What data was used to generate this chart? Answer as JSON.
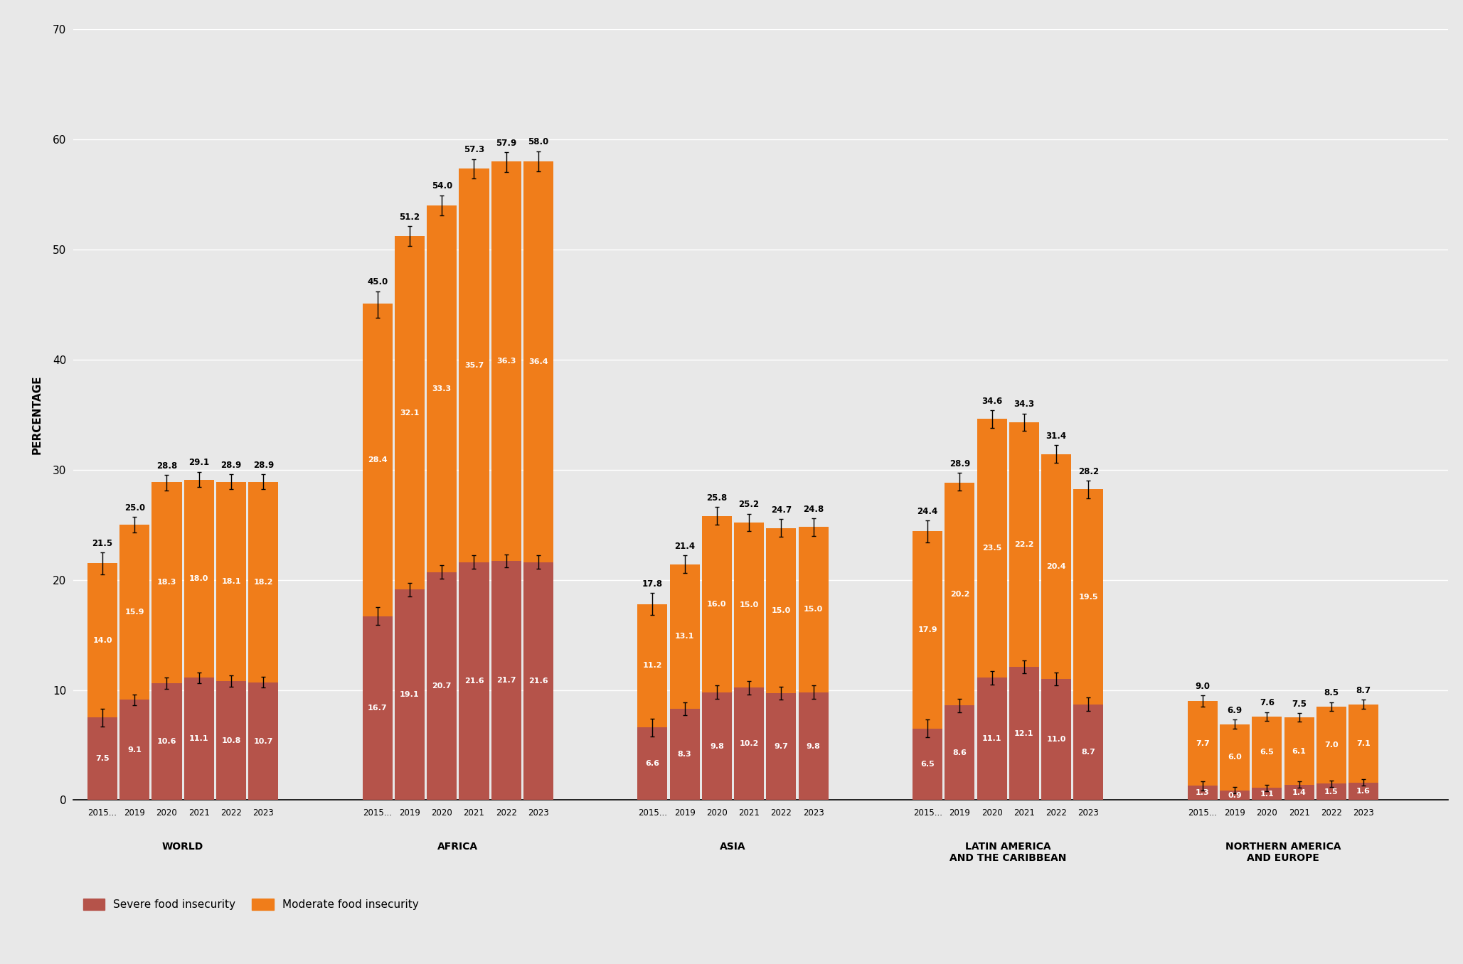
{
  "regions": [
    "WORLD",
    "AFRICA",
    "ASIA",
    "LATIN AMERICA\nAND THE CARIBBEAN",
    "NORTHERN AMERICA\nAND EUROPE"
  ],
  "years": [
    "2015...",
    "2019",
    "2020",
    "2021",
    "2022",
    "2023"
  ],
  "severe": {
    "WORLD": [
      7.5,
      9.1,
      10.6,
      11.1,
      10.8,
      10.7
    ],
    "AFRICA": [
      16.7,
      19.1,
      20.7,
      21.6,
      21.7,
      21.6
    ],
    "ASIA": [
      6.6,
      8.3,
      9.8,
      10.2,
      9.7,
      9.8
    ],
    "LATIN AMERICA\nAND THE CARIBBEAN": [
      6.5,
      8.6,
      11.1,
      12.1,
      11.0,
      8.7
    ],
    "NORTHERN AMERICA\nAND EUROPE": [
      1.3,
      0.9,
      1.1,
      1.4,
      1.5,
      1.6
    ]
  },
  "moderate": {
    "WORLD": [
      14.0,
      15.9,
      18.3,
      18.0,
      18.1,
      18.2
    ],
    "AFRICA": [
      28.4,
      32.1,
      33.3,
      35.7,
      36.3,
      36.4
    ],
    "ASIA": [
      11.2,
      13.1,
      16.0,
      15.0,
      15.0,
      15.0
    ],
    "LATIN AMERICA\nAND THE CARIBBEAN": [
      17.9,
      20.2,
      23.5,
      22.2,
      20.4,
      19.5
    ],
    "NORTHERN AMERICA\nAND EUROPE": [
      7.7,
      6.0,
      6.5,
      6.1,
      7.0,
      7.1
    ]
  },
  "total_labels": {
    "WORLD": [
      21.5,
      25.0,
      28.8,
      29.1,
      28.9,
      28.9
    ],
    "AFRICA": [
      45.0,
      51.2,
      54.0,
      57.3,
      57.9,
      58.0
    ],
    "ASIA": [
      17.8,
      21.4,
      25.8,
      25.2,
      24.7,
      24.8
    ],
    "LATIN AMERICA\nAND THE CARIBBEAN": [
      24.4,
      28.9,
      34.6,
      34.3,
      31.4,
      28.2
    ],
    "NORTHERN AMERICA\nAND EUROPE": [
      9.0,
      6.9,
      7.6,
      7.5,
      8.5,
      8.7
    ]
  },
  "severe_errors": {
    "WORLD": [
      0.8,
      0.5,
      0.5,
      0.5,
      0.5,
      0.5
    ],
    "AFRICA": [
      0.8,
      0.6,
      0.6,
      0.6,
      0.6,
      0.6
    ],
    "ASIA": [
      0.8,
      0.6,
      0.6,
      0.6,
      0.6,
      0.6
    ],
    "LATIN AMERICA\nAND THE CARIBBEAN": [
      0.8,
      0.6,
      0.6,
      0.6,
      0.6,
      0.6
    ],
    "NORTHERN AMERICA\nAND EUROPE": [
      0.4,
      0.3,
      0.3,
      0.3,
      0.3,
      0.3
    ]
  },
  "total_errors": {
    "WORLD": [
      1.0,
      0.7,
      0.7,
      0.7,
      0.7,
      0.7
    ],
    "AFRICA": [
      1.2,
      0.9,
      0.9,
      0.9,
      0.9,
      0.9
    ],
    "ASIA": [
      1.0,
      0.8,
      0.8,
      0.8,
      0.8,
      0.8
    ],
    "LATIN AMERICA\nAND THE CARIBBEAN": [
      1.0,
      0.8,
      0.8,
      0.8,
      0.8,
      0.8
    ],
    "NORTHERN AMERICA\nAND EUROPE": [
      0.5,
      0.4,
      0.4,
      0.4,
      0.4,
      0.4
    ]
  },
  "severe_color": "#b5534a",
  "moderate_color": "#f07d1a",
  "bg_color": "#e8e8e8",
  "ylabel": "PERCENTAGE",
  "ylim": [
    0,
    70
  ],
  "yticks": [
    0,
    10,
    20,
    30,
    40,
    50,
    60,
    70
  ]
}
